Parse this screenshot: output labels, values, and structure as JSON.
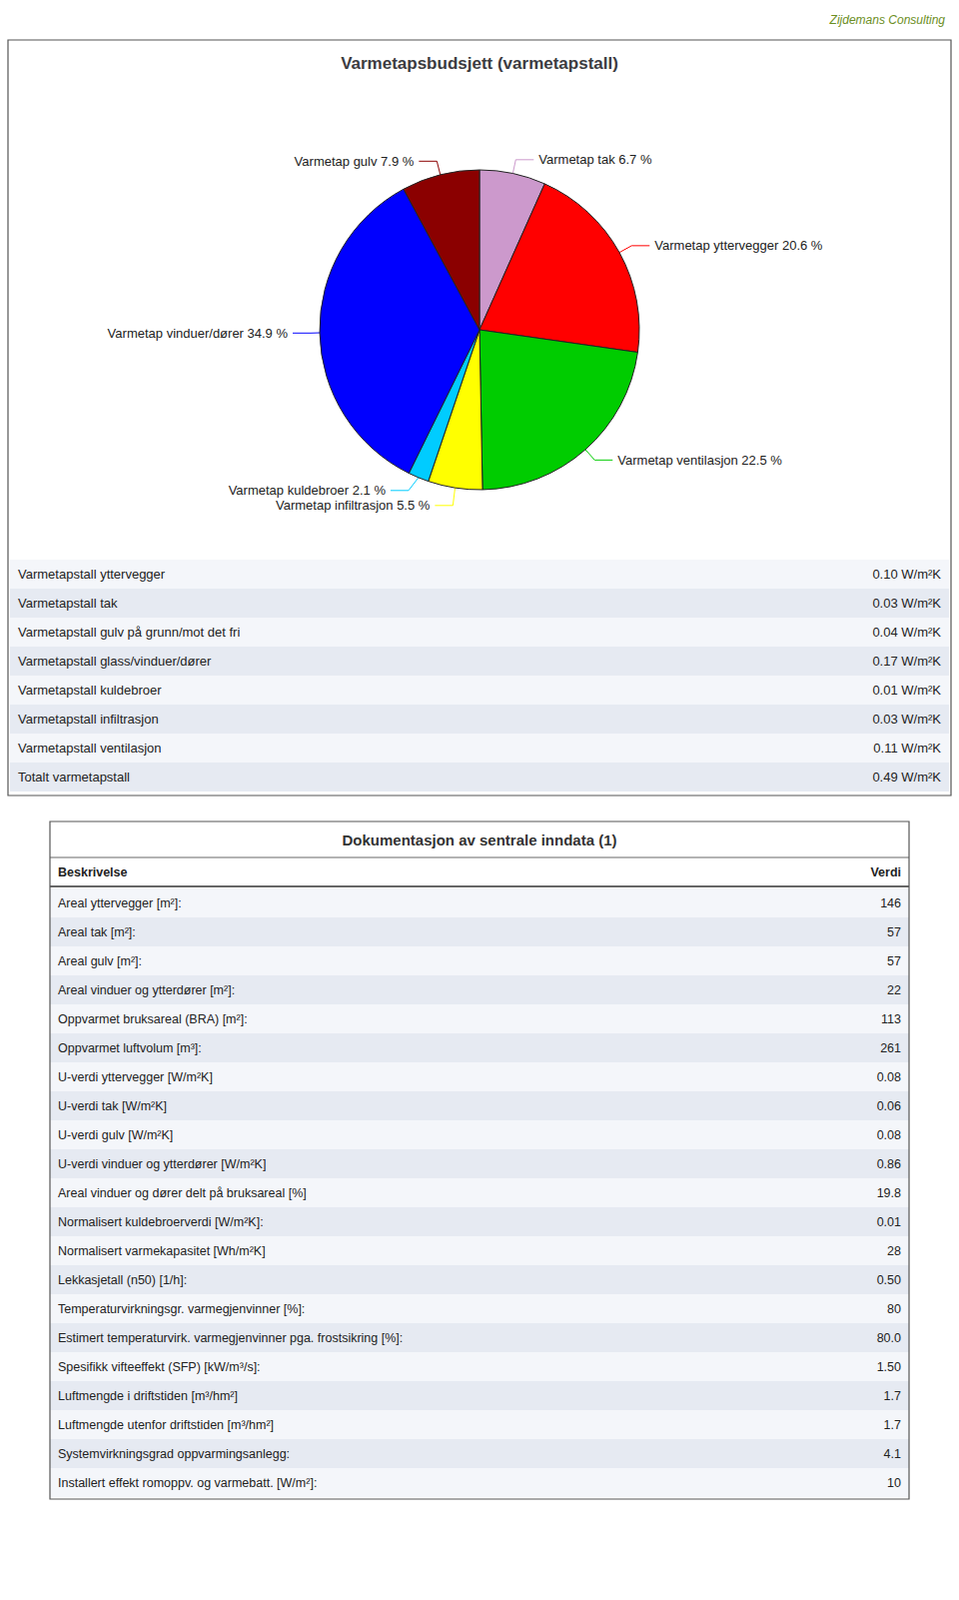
{
  "chart_data": [
    {
      "type": "pie",
      "title": "Varmetapsbudsjett (varmetapstall)",
      "categories": [
        "Varmetap tak 6.7 %",
        "Varmetap yttervegger 20.6 %",
        "Varmetap ventilasjon 22.5 %",
        "Varmetap infiltrasjon 5.5 %",
        "Varmetap kuldebroer 2.1 %",
        "Varmetap vinduer/dører 34.9 %",
        "Varmetap gulv 7.9 %"
      ],
      "values": [
        6.7,
        20.6,
        22.5,
        5.5,
        2.1,
        34.9,
        7.9
      ],
      "colors": [
        "#cc99cc",
        "#ff0000",
        "#00cc00",
        "#ffff00",
        "#00ccff",
        "#0000ff",
        "#8b0000"
      ],
      "annotations": [
        "Zijdemans Consulting"
      ]
    },
    {
      "type": "table",
      "rows": [
        [
          "Varmetapstall yttervegger",
          "0.10 W/m²K"
        ],
        [
          "Varmetapstall tak",
          "0.03 W/m²K"
        ],
        [
          "Varmetapstall gulv på grunn/mot det fri",
          "0.04 W/m²K"
        ],
        [
          "Varmetapstall glass/vinduer/dører",
          "0.17 W/m²K"
        ],
        [
          "Varmetapstall kuldebroer",
          "0.01 W/m²K"
        ],
        [
          "Varmetapstall infiltrasjon",
          "0.03 W/m²K"
        ],
        [
          "Varmetapstall ventilasjon",
          "0.11 W/m²K"
        ],
        [
          "Totalt varmetapstall",
          "0.49 W/m²K"
        ]
      ]
    },
    {
      "type": "table",
      "title": "Dokumentasjon av sentrale inndata (1)",
      "columns": [
        "Beskrivelse",
        "Verdi"
      ],
      "rows": [
        [
          "Areal yttervegger [m²]:",
          "146"
        ],
        [
          "Areal tak [m²]:",
          "57"
        ],
        [
          "Areal gulv [m²]:",
          "57"
        ],
        [
          "Areal vinduer og ytterdører [m²]:",
          "22"
        ],
        [
          "Oppvarmet bruksareal (BRA) [m²]:",
          "113"
        ],
        [
          "Oppvarmet luftvolum [m³]:",
          "261"
        ],
        [
          "U-verdi yttervegger [W/m²K]",
          "0.08"
        ],
        [
          "U-verdi tak [W/m²K]",
          "0.06"
        ],
        [
          "U-verdi gulv [W/m²K]",
          "0.08"
        ],
        [
          "U-verdi vinduer og ytterdører [W/m²K]",
          "0.86"
        ],
        [
          "Areal vinduer og dører delt på bruksareal [%]",
          "19.8"
        ],
        [
          "Normalisert kuldebroerverdi [W/m²K]:",
          "0.01"
        ],
        [
          "Normalisert varmekapasitet [Wh/m²K]",
          "28"
        ],
        [
          "Lekkasjetall (n50) [1/h]:",
          "0.50"
        ],
        [
          "Temperaturvirkningsgr. varmegjenvinner [%]:",
          "80"
        ],
        [
          "Estimert temperaturvirk. varmegjenvinner pga. frostsikring [%]:",
          "80.0"
        ],
        [
          "Spesifikk vifteeffekt (SFP) [kW/m³/s]:",
          "1.50"
        ],
        [
          "Luftmengde i driftstiden [m³/hm²]",
          "1.7"
        ],
        [
          "Luftmengde utenfor driftstiden [m³/hm²]",
          "1.7"
        ],
        [
          "Systemvirkningsgrad oppvarmingsanlegg:",
          "4.1"
        ],
        [
          "Installert effekt romoppv. og varmebatt. [W/m²]:",
          "10"
        ]
      ]
    }
  ]
}
